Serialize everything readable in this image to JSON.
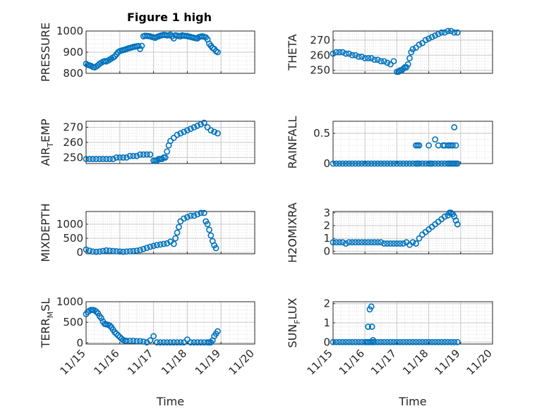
{
  "colors": {
    "marker": "#0072bd",
    "axis": "#262626",
    "grid": "#c8c8c8",
    "background": "#ffffff"
  },
  "figure_title": "Figure 1 high",
  "xlabel": "Time",
  "x_tick_labels": [
    "11/15",
    "11/16",
    "11/17",
    "11/18",
    "11/19",
    "11/20"
  ],
  "chart_data": [
    {
      "type": "scatter",
      "title": "Figure 1 high",
      "xlabel": "",
      "ylabel": "PRESSURE",
      "ylim": [
        800,
        1000
      ],
      "yticks": [
        800,
        900,
        1000
      ],
      "xlim": [
        "11/15",
        "11/20"
      ],
      "grid": true,
      "minor_grid": true,
      "x": [
        0.0,
        0.05,
        0.1,
        0.15,
        0.2,
        0.25,
        0.3,
        0.35,
        0.4,
        0.45,
        0.5,
        0.55,
        0.6,
        0.65,
        0.7,
        0.75,
        0.8,
        0.85,
        0.9,
        0.95,
        1.0,
        1.05,
        1.1,
        1.15,
        1.2,
        1.25,
        1.3,
        1.35,
        1.4,
        1.45,
        1.5,
        1.55,
        1.6,
        1.65,
        1.7,
        1.75,
        1.8,
        1.85,
        1.9,
        1.95,
        2.0,
        2.05,
        2.1,
        2.15,
        2.2,
        2.25,
        2.3,
        2.35,
        2.4,
        2.45,
        2.5,
        2.55,
        2.6,
        2.65,
        2.7,
        2.75,
        2.8,
        2.85,
        2.9,
        2.95,
        3.0,
        3.05,
        3.1,
        3.15,
        3.2,
        3.25,
        3.3,
        3.35,
        3.4,
        3.45,
        3.5,
        3.55,
        3.6,
        3.65,
        3.7,
        3.75,
        3.8,
        3.85,
        3.9
      ],
      "y": [
        845,
        840,
        838,
        835,
        830,
        828,
        832,
        838,
        845,
        850,
        855,
        858,
        856,
        860,
        865,
        870,
        875,
        880,
        890,
        900,
        905,
        908,
        910,
        912,
        915,
        918,
        920,
        922,
        925,
        926,
        928,
        929,
        915,
        930,
        975,
        978,
        977,
        976,
        975,
        972,
        970,
        968,
        972,
        975,
        978,
        980,
        982,
        981,
        979,
        980,
        983,
        975,
        965,
        980,
        978,
        976,
        975,
        980,
        978,
        977,
        976,
        974,
        972,
        970,
        968,
        966,
        965,
        972,
        974,
        975,
        973,
        970,
        960,
        940,
        930,
        920,
        915,
        905,
        900
      ]
    },
    {
      "type": "scatter",
      "xlabel": "",
      "ylabel": "THETA",
      "ylim": [
        248,
        276
      ],
      "yticks": [
        250,
        260,
        270
      ],
      "xlim": [
        "11/15",
        "11/20"
      ],
      "grid": true,
      "minor_grid": true,
      "x": [
        0.0,
        0.1,
        0.2,
        0.3,
        0.4,
        0.5,
        0.6,
        0.7,
        0.8,
        0.9,
        1.0,
        1.1,
        1.2,
        1.3,
        1.4,
        1.5,
        1.6,
        1.7,
        1.8,
        1.9,
        2.0,
        2.05,
        2.1,
        2.15,
        2.2,
        2.25,
        2.3,
        2.35,
        2.4,
        2.45,
        2.5,
        2.6,
        2.7,
        2.8,
        2.9,
        3.0,
        3.1,
        3.2,
        3.3,
        3.4,
        3.5,
        3.6,
        3.7,
        3.8,
        3.9
      ],
      "y": [
        261,
        262,
        262,
        262,
        261,
        261,
        260,
        260,
        259,
        259,
        258,
        258,
        258,
        257,
        257,
        256,
        256,
        255,
        254,
        256,
        249,
        249,
        250,
        250,
        251,
        252,
        252,
        254,
        258,
        262,
        264,
        265,
        267,
        268,
        270,
        271,
        272,
        273,
        274,
        275,
        275,
        276,
        276,
        275,
        275
      ]
    },
    {
      "type": "scatter",
      "xlabel": "",
      "ylabel_main": "AIR",
      "ylabel_sub": "T",
      "ylabel_rest": "EMP",
      "ylim": [
        246,
        274
      ],
      "yticks": [
        250,
        260,
        270
      ],
      "xlim": [
        "11/15",
        "11/20"
      ],
      "grid": true,
      "minor_grid": true,
      "x": [
        0.0,
        0.1,
        0.2,
        0.3,
        0.4,
        0.5,
        0.6,
        0.7,
        0.8,
        0.9,
        1.0,
        1.1,
        1.2,
        1.3,
        1.4,
        1.5,
        1.6,
        1.7,
        1.8,
        1.9,
        2.0,
        2.05,
        2.1,
        2.15,
        2.2,
        2.25,
        2.3,
        2.35,
        2.4,
        2.45,
        2.5,
        2.6,
        2.7,
        2.8,
        2.9,
        3.0,
        3.1,
        3.2,
        3.3,
        3.4,
        3.5,
        3.6,
        3.7,
        3.8,
        3.9
      ],
      "y": [
        249,
        249,
        249,
        249,
        249,
        249,
        249,
        249,
        249,
        250,
        250,
        250,
        250,
        251,
        251,
        251,
        252,
        252,
        252,
        252,
        248,
        248,
        248,
        249,
        249,
        249,
        250,
        250,
        254,
        258,
        261,
        263,
        265,
        266,
        267,
        268,
        269,
        270,
        271,
        272,
        273,
        270,
        268,
        267,
        266
      ]
    },
    {
      "type": "scatter",
      "xlabel": "",
      "ylabel": "RAINFALL",
      "ylim": [
        0,
        0.7
      ],
      "yticks": [
        0,
        0.5
      ],
      "xlim": [
        "11/15",
        "11/20"
      ],
      "grid": true,
      "minor_grid": true,
      "x": [
        0.0,
        0.1,
        0.2,
        0.3,
        0.4,
        0.5,
        0.6,
        0.7,
        0.8,
        0.9,
        1.0,
        1.1,
        1.2,
        1.3,
        1.4,
        1.5,
        1.6,
        1.7,
        1.8,
        1.9,
        2.0,
        2.1,
        2.2,
        2.3,
        2.4,
        2.5,
        2.6,
        2.65,
        2.7,
        2.8,
        2.9,
        3.0,
        3.05,
        3.1,
        3.2,
        3.3,
        3.4,
        3.5,
        3.6,
        3.65,
        3.7,
        3.75,
        3.8,
        3.85,
        3.9,
        2.6,
        2.65,
        2.7,
        3.0,
        3.2,
        3.3,
        3.45,
        3.5,
        3.6,
        3.65,
        3.7,
        3.75,
        3.8,
        3.85
      ],
      "y": [
        0,
        0,
        0,
        0,
        0,
        0,
        0,
        0,
        0,
        0,
        0,
        0,
        0,
        0,
        0,
        0,
        0,
        0,
        0,
        0,
        0,
        0,
        0,
        0,
        0,
        0,
        0,
        0,
        0,
        0,
        0,
        0,
        0,
        0,
        0,
        0,
        0,
        0,
        0,
        0,
        0,
        0,
        0,
        0,
        0,
        0.3,
        0.3,
        0.3,
        0.3,
        0.4,
        0.3,
        0.3,
        0.3,
        0.3,
        0.3,
        0.3,
        0.3,
        0.6,
        0.3
      ]
    },
    {
      "type": "scatter",
      "xlabel": "",
      "ylabel": "MIXDEPTH",
      "ylim": [
        -50,
        1450
      ],
      "yticks": [
        0,
        500,
        1000
      ],
      "xlim": [
        "11/15",
        "11/20"
      ],
      "grid": true,
      "minor_grid": true,
      "x": [
        0.0,
        0.1,
        0.2,
        0.3,
        0.4,
        0.5,
        0.6,
        0.7,
        0.8,
        0.9,
        1.0,
        1.1,
        1.2,
        1.3,
        1.4,
        1.5,
        1.6,
        1.7,
        1.8,
        1.9,
        2.0,
        2.1,
        2.2,
        2.3,
        2.4,
        2.5,
        2.6,
        2.65,
        2.7,
        2.75,
        2.8,
        2.9,
        3.0,
        3.1,
        3.2,
        3.3,
        3.4,
        3.5,
        3.55,
        3.6,
        3.65,
        3.7,
        3.75,
        3.8,
        3.85
      ],
      "y": [
        100,
        60,
        30,
        20,
        30,
        50,
        70,
        60,
        50,
        40,
        30,
        20,
        30,
        40,
        50,
        60,
        80,
        120,
        160,
        200,
        230,
        260,
        280,
        300,
        320,
        380,
        300,
        500,
        700,
        900,
        1100,
        1200,
        1250,
        1300,
        1300,
        1350,
        1400,
        1400,
        1100,
        1000,
        800,
        600,
        400,
        250,
        150
      ]
    },
    {
      "type": "scatter",
      "xlabel": "",
      "ylabel": "H2OMIXRA",
      "ylim": [
        -0.2,
        3.1
      ],
      "yticks": [
        0,
        1,
        2,
        3
      ],
      "xlim": [
        "11/15",
        "11/20"
      ],
      "grid": true,
      "minor_grid": true,
      "x": [
        0.0,
        0.1,
        0.2,
        0.3,
        0.4,
        0.5,
        0.6,
        0.7,
        0.8,
        0.9,
        1.0,
        1.1,
        1.2,
        1.3,
        1.4,
        1.5,
        1.6,
        1.7,
        1.8,
        1.9,
        2.0,
        2.1,
        2.2,
        2.3,
        2.4,
        2.5,
        2.6,
        2.7,
        2.8,
        2.9,
        3.0,
        3.1,
        3.2,
        3.3,
        3.4,
        3.5,
        3.6,
        3.65,
        3.7,
        3.75,
        3.8,
        3.85,
        3.9
      ],
      "y": [
        0.7,
        0.7,
        0.7,
        0.7,
        0.6,
        0.7,
        0.7,
        0.7,
        0.7,
        0.7,
        0.7,
        0.7,
        0.7,
        0.7,
        0.7,
        0.7,
        0.6,
        0.6,
        0.6,
        0.6,
        0.6,
        0.6,
        0.6,
        0.7,
        0.5,
        0.7,
        0.6,
        1.0,
        1.3,
        1.5,
        1.7,
        1.9,
        2.1,
        2.3,
        2.5,
        2.7,
        2.8,
        3.0,
        3.0,
        2.9,
        2.7,
        2.4,
        2.1
      ]
    },
    {
      "type": "scatter",
      "xlabel": "Time",
      "ylabel_main": "TERR",
      "ylabel_sub": "M",
      "ylabel_rest": "SL",
      "ylim": [
        -30,
        1000
      ],
      "yticks": [
        0,
        500,
        1000
      ],
      "xlim": [
        "11/15",
        "11/20"
      ],
      "grid": true,
      "minor_grid": true,
      "x": [
        0.0,
        0.05,
        0.1,
        0.15,
        0.2,
        0.25,
        0.3,
        0.35,
        0.4,
        0.45,
        0.5,
        0.55,
        0.6,
        0.65,
        0.7,
        0.75,
        0.8,
        0.85,
        0.9,
        0.95,
        1.0,
        1.05,
        1.1,
        1.15,
        1.2,
        1.3,
        1.4,
        1.5,
        1.6,
        1.7,
        1.8,
        1.9,
        2.0,
        2.1,
        2.2,
        2.3,
        2.4,
        2.5,
        2.6,
        2.7,
        2.8,
        2.9,
        3.0,
        3.1,
        3.2,
        3.3,
        3.4,
        3.5,
        3.6,
        3.65,
        3.7,
        3.75,
        3.8,
        3.85,
        3.9
      ],
      "y": [
        700,
        750,
        780,
        800,
        800,
        790,
        760,
        720,
        650,
        600,
        520,
        460,
        450,
        440,
        420,
        380,
        320,
        260,
        220,
        180,
        140,
        100,
        70,
        50,
        50,
        50,
        50,
        40,
        40,
        30,
        10,
        60,
        160,
        10,
        10,
        10,
        10,
        10,
        10,
        10,
        10,
        10,
        80,
        10,
        10,
        10,
        10,
        10,
        10,
        10,
        10,
        60,
        160,
        220,
        280
      ]
    },
    {
      "type": "scatter",
      "xlabel": "Time",
      "ylabel_main": "SUN",
      "ylabel_sub": "F",
      "ylabel_rest": "LUX",
      "ylim": [
        -0.1,
        2.1
      ],
      "yticks": [
        0,
        1,
        2
      ],
      "xlim": [
        "11/15",
        "11/20"
      ],
      "grid": true,
      "minor_grid": true,
      "x": [
        0.0,
        0.1,
        0.2,
        0.3,
        0.4,
        0.5,
        0.6,
        0.7,
        0.8,
        0.9,
        1.0,
        1.05,
        1.1,
        1.15,
        1.2,
        1.25,
        1.3,
        1.4,
        1.5,
        1.6,
        1.7,
        1.8,
        1.9,
        2.0,
        2.1,
        2.2,
        2.3,
        2.4,
        2.5,
        2.6,
        2.7,
        2.8,
        2.9,
        3.0,
        3.1,
        3.2,
        3.3,
        3.4,
        3.5,
        3.6,
        3.7,
        3.8,
        3.9,
        1.1,
        1.15,
        1.2,
        1.22,
        1.25
      ],
      "y": [
        0,
        0,
        0,
        0,
        0,
        0,
        0,
        0,
        0,
        0,
        0,
        0,
        0,
        0,
        0,
        0,
        0,
        0,
        0,
        0,
        0,
        0,
        0,
        0,
        0,
        0,
        0,
        0,
        0,
        0,
        0,
        0,
        0,
        0,
        0,
        0,
        0,
        0,
        0,
        0,
        0,
        0,
        0,
        0.8,
        1.7,
        1.85,
        0.8,
        0.1
      ]
    }
  ]
}
